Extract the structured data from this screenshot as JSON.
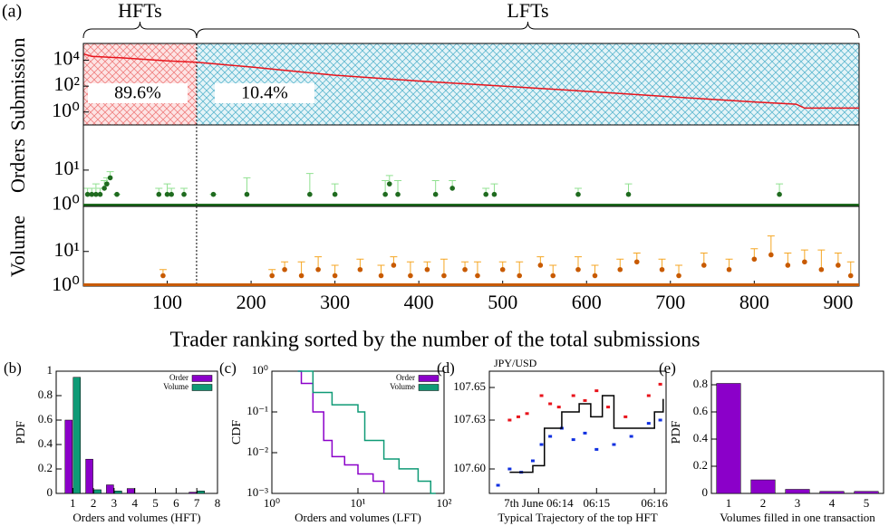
{
  "chart_data": [
    {
      "type": "line",
      "panel_label": "(a)",
      "y_label": "Submission",
      "ylog": true,
      "xlim": [
        0,
        925
      ],
      "ylim": [
        0.1,
        200000
      ],
      "yticks": [
        {
          "value": 1,
          "label": "10⁰"
        },
        {
          "value": 100,
          "label": "10²"
        },
        {
          "value": 10000,
          "label": "10⁴"
        }
      ],
      "divider": 135,
      "annotations": {
        "hft": "HFTs",
        "lft": "LFTs",
        "hft_share": "89.6%",
        "lft_share": "10.4%"
      },
      "series": [
        {
          "color": "#e8141c",
          "x": [
            1,
            10,
            50,
            100,
            135,
            200,
            300,
            400,
            500,
            600,
            700,
            800,
            850,
            860,
            925
          ],
          "values": [
            30000,
            20000,
            15000,
            9000,
            7000,
            3000,
            700,
            250,
            100,
            40,
            15,
            6,
            4,
            2,
            2
          ]
        }
      ]
    },
    {
      "type": "errorbar",
      "y_label": "Orders",
      "ylog": true,
      "xlim": [
        0,
        925
      ],
      "ylim": [
        0.9,
        200
      ],
      "yticks": [
        {
          "value": 1,
          "label": "10⁰"
        },
        {
          "value": 10,
          "label": "10¹"
        }
      ],
      "color": "#1f6b1f",
      "error_color": "#90e090",
      "x": [
        5,
        10,
        15,
        20,
        25,
        28,
        32,
        40,
        90,
        100,
        105,
        120,
        155,
        195,
        270,
        300,
        360,
        365,
        375,
        420,
        440,
        480,
        490,
        590,
        650,
        830
      ],
      "values": [
        2,
        2,
        2,
        2,
        3,
        4,
        6,
        2,
        2,
        2,
        2,
        2,
        2,
        2,
        2,
        2,
        2,
        4,
        2,
        2,
        3,
        2,
        2,
        2,
        2,
        2
      ],
      "errors": [
        1,
        1,
        2,
        1,
        2,
        2,
        3,
        0,
        1,
        2,
        1,
        1,
        0,
        4,
        6,
        2,
        3,
        3,
        3,
        3,
        2,
        1,
        2,
        1,
        2,
        2
      ]
    },
    {
      "type": "errorbar",
      "y_label": "Volume",
      "x_label": "Trader ranking sorted by the number of the total submissions",
      "ylog": true,
      "xlim": [
        0,
        925
      ],
      "ylim": [
        1,
        200
      ],
      "yticks": [
        {
          "value": 1,
          "label": "10⁰"
        },
        {
          "value": 10,
          "label": "10¹"
        }
      ],
      "xticks": [
        100,
        200,
        300,
        400,
        500,
        600,
        700,
        800,
        900
      ],
      "color": "#c85a00",
      "error_color": "#f5a623",
      "x": [
        95,
        225,
        240,
        260,
        280,
        300,
        330,
        355,
        370,
        390,
        410,
        430,
        455,
        470,
        500,
        520,
        545,
        560,
        590,
        610,
        640,
        660,
        690,
        710,
        740,
        770,
        800,
        820,
        840,
        860,
        880,
        900,
        915
      ],
      "values": [
        2,
        2,
        3,
        2,
        3,
        2,
        3,
        2,
        4,
        2,
        3,
        2,
        3,
        2,
        3,
        2,
        4,
        2,
        3,
        2,
        3,
        5,
        3,
        2,
        4,
        3,
        6,
        8,
        4,
        5,
        3,
        4,
        2
      ],
      "errors": [
        1,
        1,
        2,
        3,
        4,
        2,
        3,
        2,
        3,
        3,
        2,
        4,
        2,
        3,
        2,
        3,
        3,
        2,
        4,
        2,
        3,
        4,
        3,
        2,
        5,
        3,
        6,
        20,
        5,
        6,
        8,
        5,
        3
      ]
    },
    {
      "type": "bar",
      "panel_label": "(b)",
      "y_label": "PDF",
      "x_label": "Orders and volumes (HFT)",
      "xlim": [
        0.2,
        8
      ],
      "ylim": [
        0,
        1
      ],
      "xticks": [
        1,
        2,
        3,
        4,
        5,
        6,
        7,
        8
      ],
      "yticks": [
        0,
        0.2,
        0.4,
        0.6,
        0.8,
        1
      ],
      "x": [
        1,
        2,
        3,
        4,
        7
      ],
      "series": [
        {
          "name": "Order",
          "color": "#8b00c9",
          "values": [
            0.6,
            0.28,
            0.07,
            0.04,
            0.01
          ]
        },
        {
          "name": "Volume",
          "color": "#0f9a76",
          "values": [
            0.95,
            0.03,
            0.02,
            0,
            0.02
          ]
        }
      ]
    },
    {
      "type": "line",
      "step": true,
      "panel_label": "(c)",
      "y_label": "CDF",
      "x_label": "Orders and volumes (LFT)",
      "xlog": true,
      "ylog": true,
      "xlim": [
        1,
        100
      ],
      "ylim": [
        0.001,
        1
      ],
      "xticks": [
        {
          "value": 1,
          "label": "10⁰"
        },
        {
          "value": 10,
          "label": "10¹"
        },
        {
          "value": 100,
          "label": "10²"
        }
      ],
      "yticks": [
        {
          "value": 0.001,
          "label": "10⁻³"
        },
        {
          "value": 0.01,
          "label": "10⁻²"
        },
        {
          "value": 0.1,
          "label": "10⁻¹"
        },
        {
          "value": 1,
          "label": "10⁰"
        }
      ],
      "series": [
        {
          "name": "Order",
          "color": "#8b00c9",
          "x": [
            2,
            2.2,
            3,
            4,
            5,
            7,
            10,
            15,
            20
          ],
          "values": [
            1,
            0.5,
            0.1,
            0.02,
            0.008,
            0.005,
            0.003,
            0.002,
            0.001
          ]
        },
        {
          "name": "Volume",
          "color": "#0f9a76",
          "x": [
            2,
            3,
            5,
            10,
            12,
            20,
            30,
            50,
            70,
            80
          ],
          "values": [
            1,
            0.3,
            0.15,
            0.1,
            0.02,
            0.007,
            0.004,
            0.002,
            0.001,
            0.001
          ]
        }
      ]
    },
    {
      "type": "scatter",
      "panel_label": "(d)",
      "title": "JPY/USD",
      "x_label": "Typical Trajectory of the top HFT",
      "xlim": [
        -0.85,
        2.2
      ],
      "ylim": [
        107.585,
        107.66
      ],
      "xticks": [
        {
          "value": 0,
          "label": "7th June 06:14"
        },
        {
          "value": 1,
          "label": "06:15"
        },
        {
          "value": 2,
          "label": "06:16"
        }
      ],
      "yticks": [
        {
          "value": 107.6,
          "label": "107.60"
        },
        107.63,
        107.65
      ],
      "series": [
        {
          "color": "#e8141c",
          "x": [
            -0.5,
            -0.35,
            -0.2,
            0.05,
            0.2,
            0.35,
            0.6,
            0.8,
            1.0,
            1.2,
            1.5,
            1.9,
            2.1
          ],
          "values": [
            107.63,
            107.632,
            107.634,
            107.645,
            107.64,
            107.638,
            107.645,
            107.642,
            107.648,
            107.638,
            107.632,
            107.645,
            107.652
          ]
        },
        {
          "color": "#1030e0",
          "x": [
            -0.7,
            -0.5,
            -0.3,
            -0.1,
            0.05,
            0.2,
            0.4,
            0.6,
            0.8,
            1.0,
            1.3,
            1.6,
            1.9,
            2.1
          ],
          "values": [
            107.59,
            107.6,
            107.598,
            107.605,
            107.615,
            107.62,
            107.625,
            107.618,
            107.622,
            107.612,
            107.615,
            107.62,
            107.628,
            107.63
          ]
        },
        {
          "color": "#000000",
          "step": true,
          "x": [
            -0.5,
            -0.1,
            0.1,
            0.4,
            0.7,
            0.9,
            1.1,
            1.3,
            1.8,
            2.0,
            2.15
          ],
          "values": [
            107.598,
            107.602,
            107.625,
            107.635,
            107.64,
            107.632,
            107.645,
            107.625,
            107.625,
            107.635,
            107.643
          ]
        }
      ]
    },
    {
      "type": "bar",
      "panel_label": "(e)",
      "y_label": "PDF",
      "x_label": "Volumes filled in one transaction",
      "ylim": [
        0,
        0.9
      ],
      "yticks": [
        0,
        0.2,
        0.4,
        0.6,
        0.8
      ],
      "categories": [
        "1",
        "2",
        "3",
        "4",
        "5"
      ],
      "color": "#8b00c9",
      "values": [
        0.81,
        0.1,
        0.03,
        0.015,
        0.015
      ]
    }
  ]
}
